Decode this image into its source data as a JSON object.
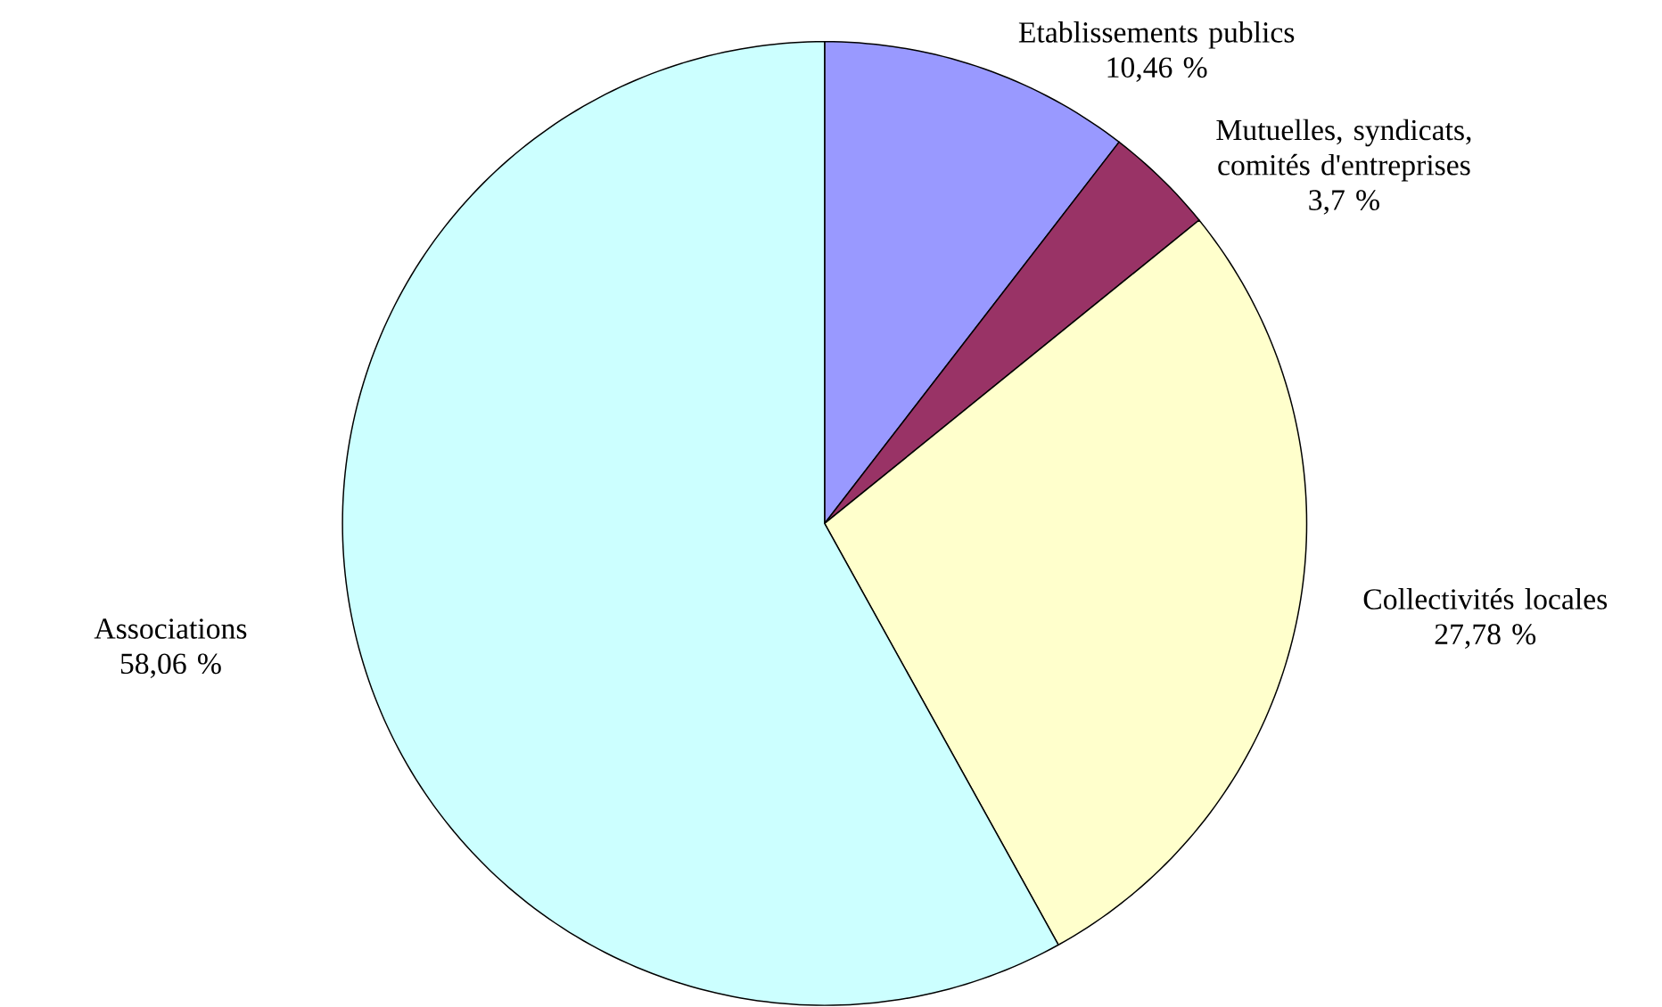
{
  "chart_data": {
    "type": "pie",
    "categories": [
      "Etablissements publics",
      "Mutuelles, syndicats, comités d'entreprises",
      "Collectivités locales",
      "Associations"
    ],
    "values": [
      10.46,
      3.7,
      27.78,
      58.06
    ],
    "value_labels": [
      "10,46 %",
      "3,7 %",
      "27,78 %",
      "58,06 %"
    ],
    "colors": [
      "#9999ff",
      "#993366",
      "#ffffcc",
      "#ccffff"
    ]
  }
}
